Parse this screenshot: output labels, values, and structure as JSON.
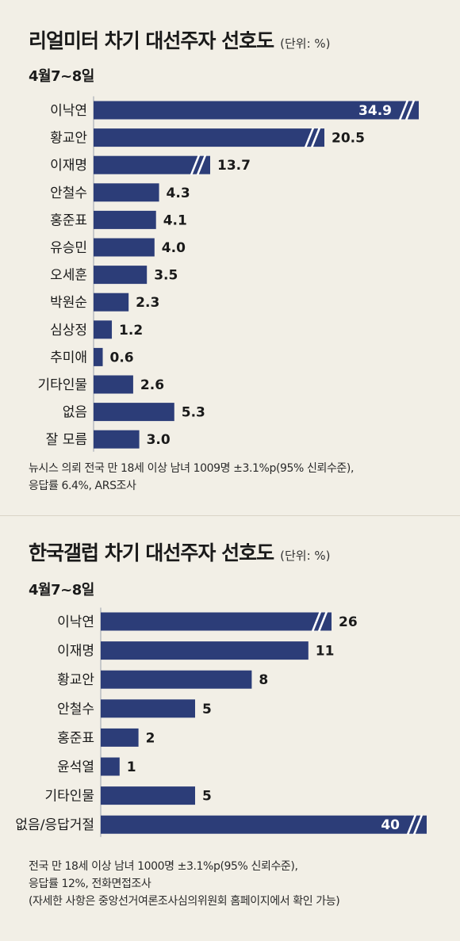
{
  "chart_data": [
    {
      "type": "bar",
      "orientation": "horizontal",
      "title": "리얼미터 차기 대선주자 선호도",
      "unit": "(단위: %)",
      "subtitle": "4월7~8일",
      "categories": [
        "이낙연",
        "황교안",
        "이재명",
        "안철수",
        "홍준표",
        "유승민",
        "오세훈",
        "박원순",
        "심상정",
        "추미애",
        "기타인물",
        "없음",
        "잘 모름"
      ],
      "values": [
        34.9,
        20.5,
        13.7,
        4.3,
        4.1,
        4.0,
        3.5,
        2.3,
        1.2,
        0.6,
        2.6,
        5.3,
        3.0
      ],
      "labels": [
        "34.9",
        "20.5",
        "13.7",
        "4.3",
        "4.1",
        "4.0",
        "3.5",
        "2.3",
        "1.2",
        "0.6",
        "2.6",
        "5.3",
        "3.0"
      ],
      "broken_axis_bars": [
        0,
        1,
        2
      ],
      "bar_color": "#2c3d78",
      "notes": [
        "뉴시스 의뢰 전국 만 18세 이상 남녀 1009명 ±3.1%p(95% 신뢰수준),",
        "응답률 6.4%, ARS조사"
      ]
    },
    {
      "type": "bar",
      "orientation": "horizontal",
      "title": "한국갤럽 차기 대선주자 선호도",
      "unit": "(단위: %)",
      "subtitle": "4월7~8일",
      "categories": [
        "이낙연",
        "이재명",
        "황교안",
        "안철수",
        "홍준표",
        "윤석열",
        "기타인물",
        "없음/응답거절"
      ],
      "values": [
        26,
        11,
        8,
        5,
        2,
        1,
        5,
        40
      ],
      "labels": [
        "26",
        "11",
        "8",
        "5",
        "2",
        "1",
        "5",
        "40"
      ],
      "broken_axis_bars": [
        0,
        7
      ],
      "bar_color": "#2c3d78",
      "notes": [
        "전국 만 18세 이상 남녀 1000명 ±3.1%p(95% 신뢰수준),",
        "응답률 12%, 전화면접조사",
        "(자세한 사항은 중앙선거여론조사심의위원회 홈페이지에서 확인 가능)"
      ]
    }
  ]
}
